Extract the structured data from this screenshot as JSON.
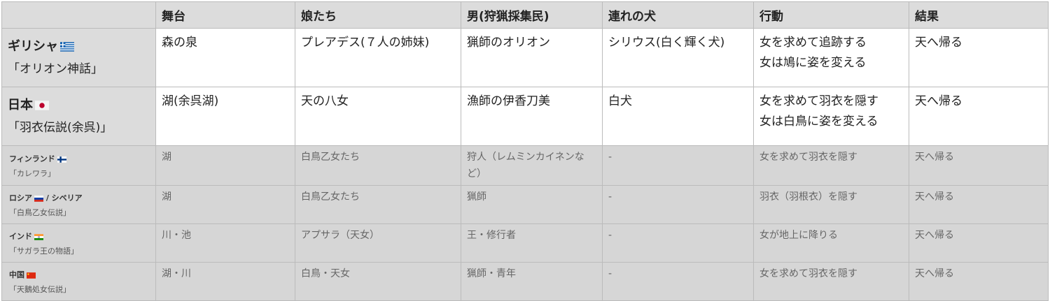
{
  "headers": [
    "",
    "舞台",
    "娘たち",
    "男(狩猟採集民)",
    "連れの犬",
    "行動",
    "結果"
  ],
  "rows": [
    {
      "country": "ギリシャ",
      "flag": "greece-flag",
      "story": "「オリオン神話」",
      "cells": [
        "森の泉",
        "プレアデス(７人の姉妹)",
        "猟師のオリオン",
        "シリウス(白く輝く犬)",
        "女を求めて追跡する\n女は鳩に姿を変える",
        "天へ帰る"
      ]
    },
    {
      "country": "日本",
      "flag": "japan-flag",
      "story": "「羽衣伝説(余呉)」",
      "cells": [
        "湖(余呉湖)",
        "天の八女",
        "漁師の伊香刀美",
        "白犬",
        "女を求めて羽衣を隠す\n女は白鳥に姿を変える",
        "天へ帰る"
      ]
    },
    {
      "country": "フィンランド",
      "flag": "finland-flag",
      "story": "「カレワラ」",
      "cells": [
        "湖",
        "白鳥乙女たち",
        "狩人（レムミンカイネンなど）",
        "-",
        "女を求めて羽衣を隠す",
        "天へ帰る"
      ]
    },
    {
      "country": "ロシア",
      "flag": "russia-flag",
      "country_suffix": " / シベリア",
      "story": "「白鳥乙女伝説」",
      "cells": [
        "湖",
        "白鳥乙女たち",
        "猟師",
        "-",
        "羽衣（羽根衣）を隠す",
        "天へ帰る"
      ]
    },
    {
      "country": "インド",
      "flag": "india-flag",
      "story": "「サガラ王の物語」",
      "cells": [
        "川・池",
        "アプサラ（天女）",
        "王・修行者",
        "-",
        "女が地上に降りる",
        "天へ帰る"
      ]
    },
    {
      "country": "中国",
      "flag": "china-flag",
      "story": "「天鵝処女伝説」",
      "cells": [
        "湖・川",
        "白鳥・天女",
        "猟師・青年",
        "-",
        "女を求めて羽衣を隠す",
        "天へ帰る"
      ]
    }
  ]
}
